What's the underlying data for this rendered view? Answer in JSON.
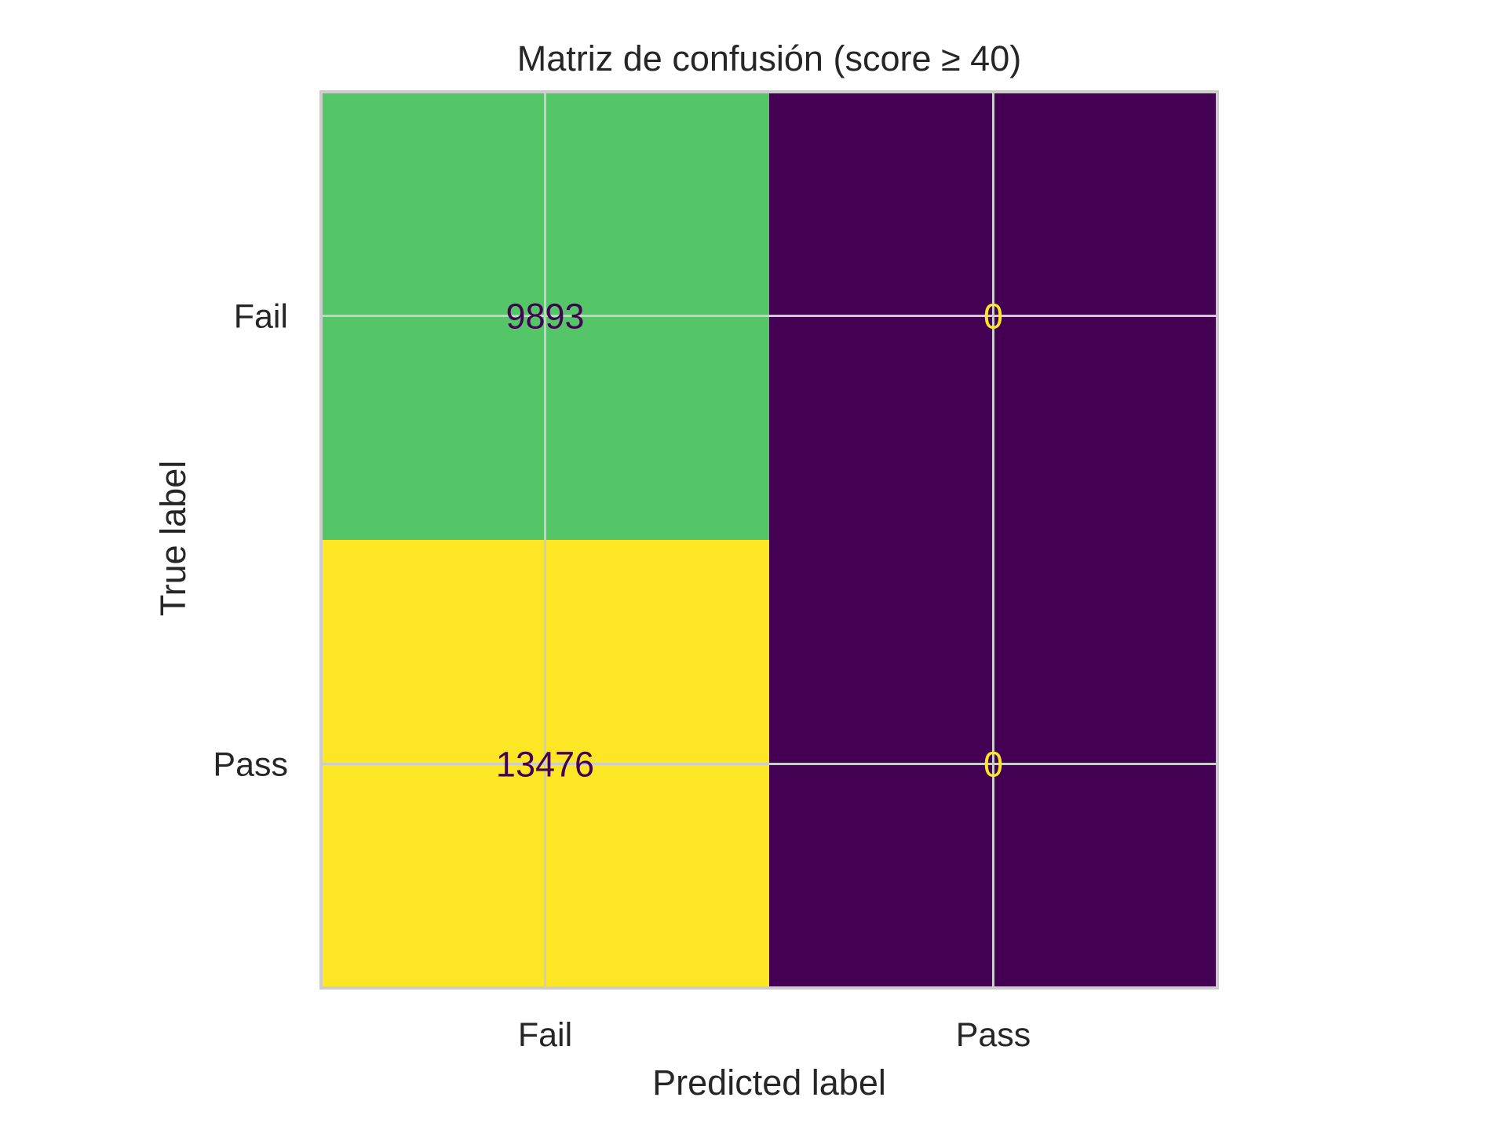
{
  "chart_data": {
    "type": "heatmap",
    "title": "Matriz de confusión (score ≥ 40)",
    "xlabel": "Predicted label",
    "ylabel": "True label",
    "x_categories": [
      "Fail",
      "Pass"
    ],
    "y_categories": [
      "Fail",
      "Pass"
    ],
    "values": [
      [
        9893,
        0
      ],
      [
        13476,
        0
      ]
    ],
    "colormap": "viridis",
    "cell_colors": [
      [
        "#55c667",
        "#440154"
      ],
      [
        "#fde725",
        "#440154"
      ]
    ],
    "cell_text_colors": [
      [
        "#440154",
        "#fde725"
      ],
      [
        "#440154",
        "#fde725"
      ]
    ],
    "grid": true
  }
}
